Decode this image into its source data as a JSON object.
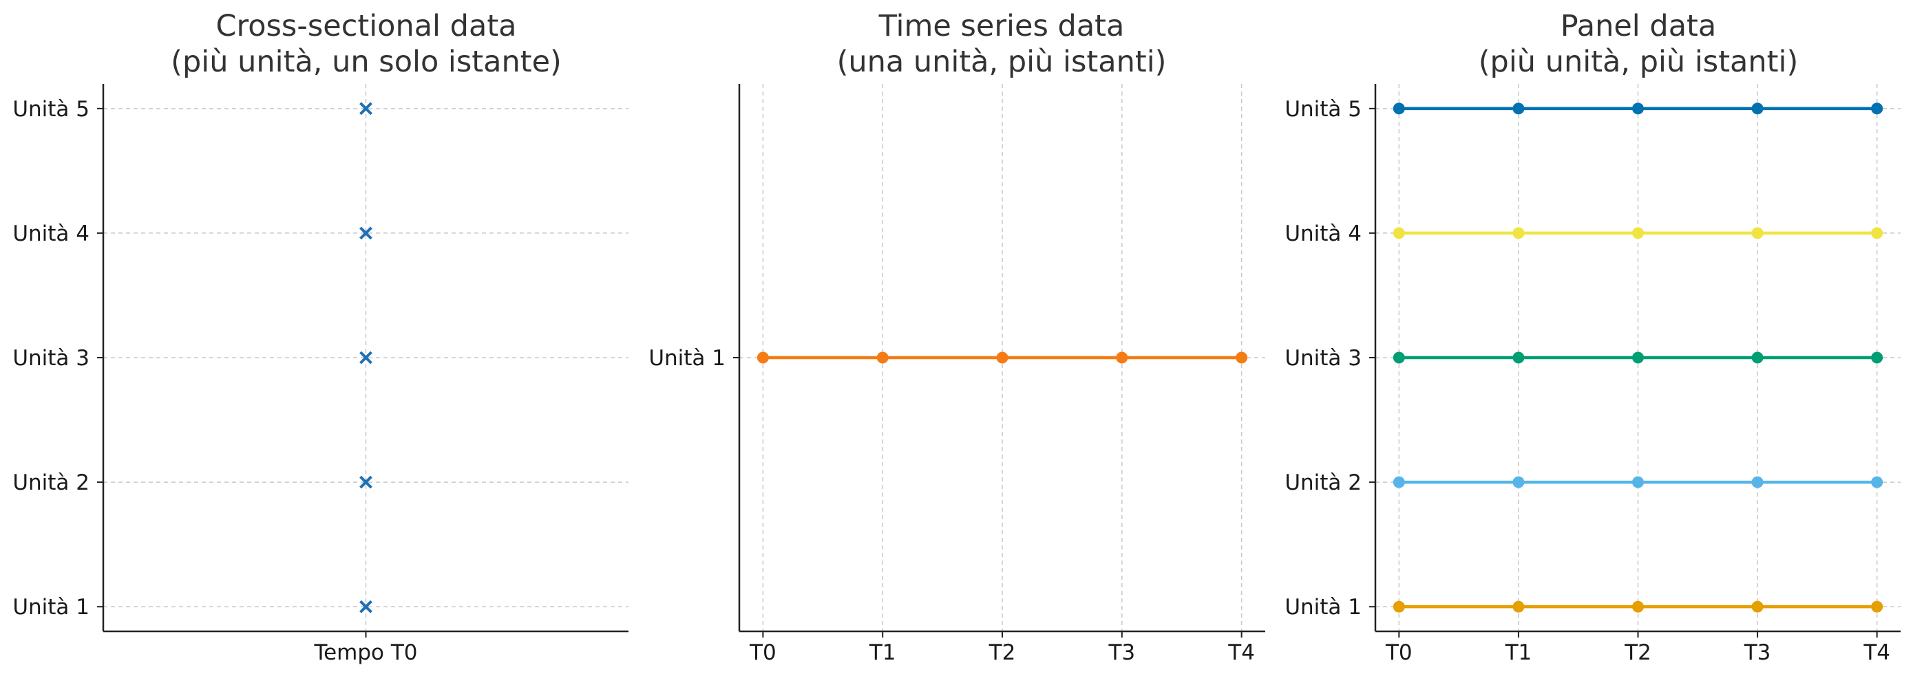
{
  "chart_data": [
    {
      "type": "scatter",
      "title_line1": "Cross-sectional data",
      "title_line2": "(più unità, un solo istante)",
      "xlabel": "",
      "ylabel": "",
      "x_categories": [
        "Tempo T0"
      ],
      "y_categories": [
        "Unità 1",
        "Unità 2",
        "Unità 3",
        "Unità 4",
        "Unità 5"
      ],
      "grid": true,
      "marker": "x",
      "series": [
        {
          "color": "#1f6fb4",
          "points": [
            [
              "Tempo T0",
              "Unità 1"
            ],
            [
              "Tempo T0",
              "Unità 2"
            ],
            [
              "Tempo T0",
              "Unità 3"
            ],
            [
              "Tempo T0",
              "Unità 4"
            ],
            [
              "Tempo T0",
              "Unità 5"
            ]
          ]
        }
      ]
    },
    {
      "type": "line",
      "title_line1": "Time series data",
      "title_line2": "(una unità, più istanti)",
      "xlabel": "",
      "ylabel": "",
      "x_categories": [
        "T0",
        "T1",
        "T2",
        "T3",
        "T4"
      ],
      "y_categories": [
        "Unità 1"
      ],
      "grid": true,
      "marker": "circle",
      "series": [
        {
          "color": "#f57c14",
          "points": [
            [
              "T0",
              "Unità 1"
            ],
            [
              "T1",
              "Unità 1"
            ],
            [
              "T2",
              "Unità 1"
            ],
            [
              "T3",
              "Unità 1"
            ],
            [
              "T4",
              "Unità 1"
            ]
          ]
        }
      ]
    },
    {
      "type": "line",
      "title_line1": "Panel data",
      "title_line2": "(più unità, più istanti)",
      "xlabel": "",
      "ylabel": "",
      "x_categories": [
        "T0",
        "T1",
        "T2",
        "T3",
        "T4"
      ],
      "y_categories": [
        "Unità 1",
        "Unità 2",
        "Unità 3",
        "Unità 4",
        "Unità 5"
      ],
      "grid": true,
      "marker": "circle",
      "series": [
        {
          "color": "#e69f00",
          "points": [
            [
              "T0",
              "Unità 1"
            ],
            [
              "T1",
              "Unità 1"
            ],
            [
              "T2",
              "Unità 1"
            ],
            [
              "T3",
              "Unità 1"
            ],
            [
              "T4",
              "Unità 1"
            ]
          ]
        },
        {
          "color": "#56b4e9",
          "points": [
            [
              "T0",
              "Unità 2"
            ],
            [
              "T1",
              "Unità 2"
            ],
            [
              "T2",
              "Unità 2"
            ],
            [
              "T3",
              "Unità 2"
            ],
            [
              "T4",
              "Unità 2"
            ]
          ]
        },
        {
          "color": "#009e73",
          "points": [
            [
              "T0",
              "Unità 3"
            ],
            [
              "T1",
              "Unità 3"
            ],
            [
              "T2",
              "Unità 3"
            ],
            [
              "T3",
              "Unità 3"
            ],
            [
              "T4",
              "Unità 3"
            ]
          ]
        },
        {
          "color": "#f0e442",
          "points": [
            [
              "T0",
              "Unità 4"
            ],
            [
              "T1",
              "Unità 4"
            ],
            [
              "T2",
              "Unità 4"
            ],
            [
              "T3",
              "Unità 4"
            ],
            [
              "T4",
              "Unità 4"
            ]
          ]
        },
        {
          "color": "#0072b2",
          "points": [
            [
              "T0",
              "Unità 5"
            ],
            [
              "T1",
              "Unità 5"
            ],
            [
              "T2",
              "Unità 5"
            ],
            [
              "T3",
              "Unità 5"
            ],
            [
              "T4",
              "Unità 5"
            ]
          ]
        }
      ]
    }
  ]
}
